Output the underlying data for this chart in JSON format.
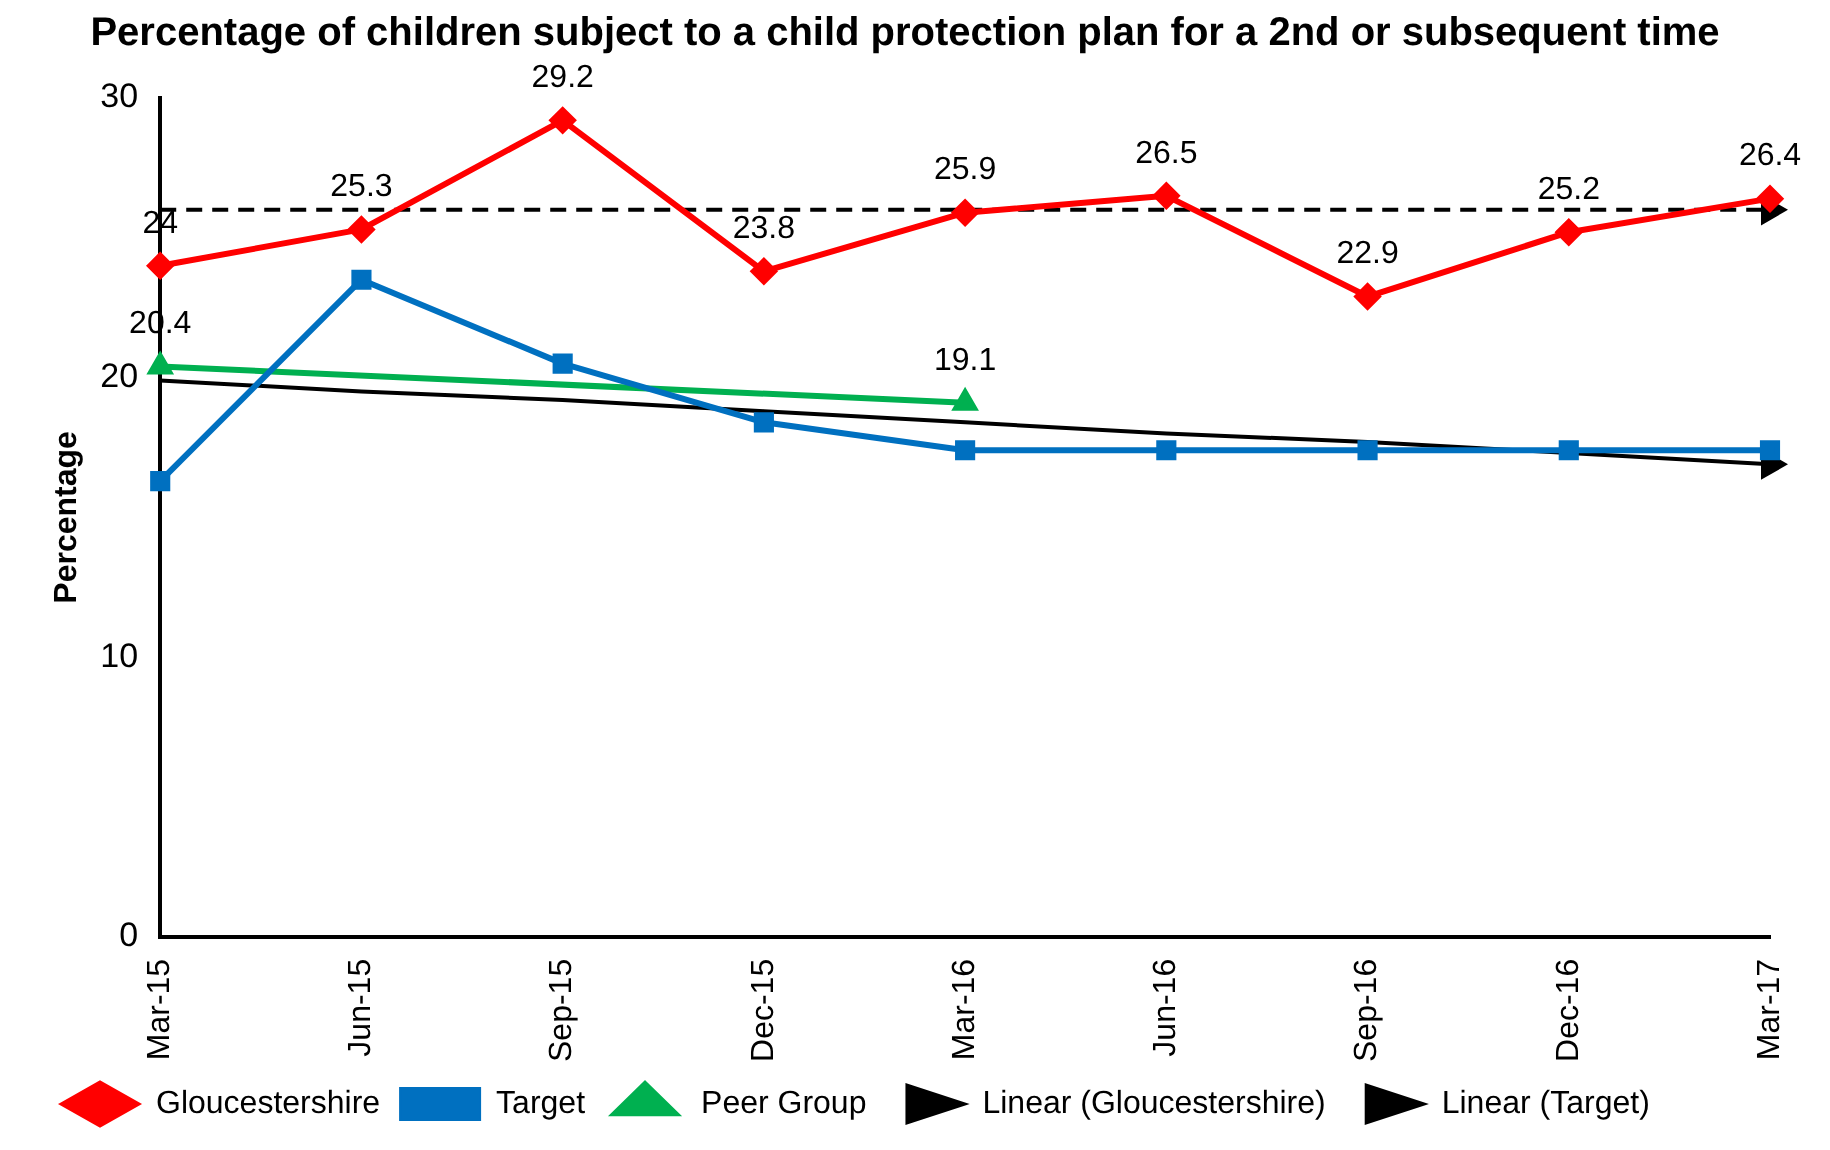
{
  "chart_data": {
    "type": "line",
    "title": "Percentage of children subject to a child protection plan for a 2nd or subsequent time",
    "ylabel": "Percentage",
    "categories": [
      "Mar-15",
      "Jun-15",
      "Sep-15",
      "Dec-15",
      "Mar-16",
      "Jun-16",
      "Sep-16",
      "Dec-16",
      "Mar-17"
    ],
    "series": [
      {
        "name": "Gloucestershire",
        "color": "#ff0000",
        "marker": "diamond",
        "values": [
          24,
          25.3,
          29.2,
          23.8,
          25.9,
          26.5,
          22.9,
          25.2,
          26.4
        ],
        "value_labels": [
          "24",
          "25.3",
          "29.2",
          "23.8",
          "25.9",
          "26.5",
          "22.9",
          "25.2",
          "26.4"
        ]
      },
      {
        "name": "Target",
        "color": "#0070c0",
        "marker": "square",
        "values": [
          16.3,
          23.5,
          20.5,
          18.4,
          17.4,
          17.4,
          17.4,
          17.4,
          17.4
        ]
      },
      {
        "name": "Peer Group",
        "color": "#00b050",
        "marker": "triangle",
        "values": [
          20.4,
          null,
          null,
          null,
          19.1,
          null,
          null,
          null,
          null
        ],
        "value_labels": [
          "20.4",
          null,
          null,
          null,
          "19.1",
          null,
          null,
          null,
          null
        ]
      },
      {
        "name": "Linear (Gloucestershire)",
        "color": "#000000",
        "marker": "none",
        "line_style": "dashed",
        "values": [
          26.0,
          26.0,
          26.0,
          26.0,
          26.0,
          26.0,
          26.0,
          26.0,
          26.0
        ]
      },
      {
        "name": "Linear (Target)",
        "color": "#000000",
        "marker": "none",
        "values": [
          19.9,
          19.5,
          19.2,
          18.8,
          18.4,
          18.0,
          17.7,
          17.3,
          16.9
        ]
      }
    ],
    "ylim": [
      0,
      30
    ],
    "yticks": [
      0,
      10,
      20,
      30
    ],
    "grid": false,
    "legend": "bottom"
  }
}
